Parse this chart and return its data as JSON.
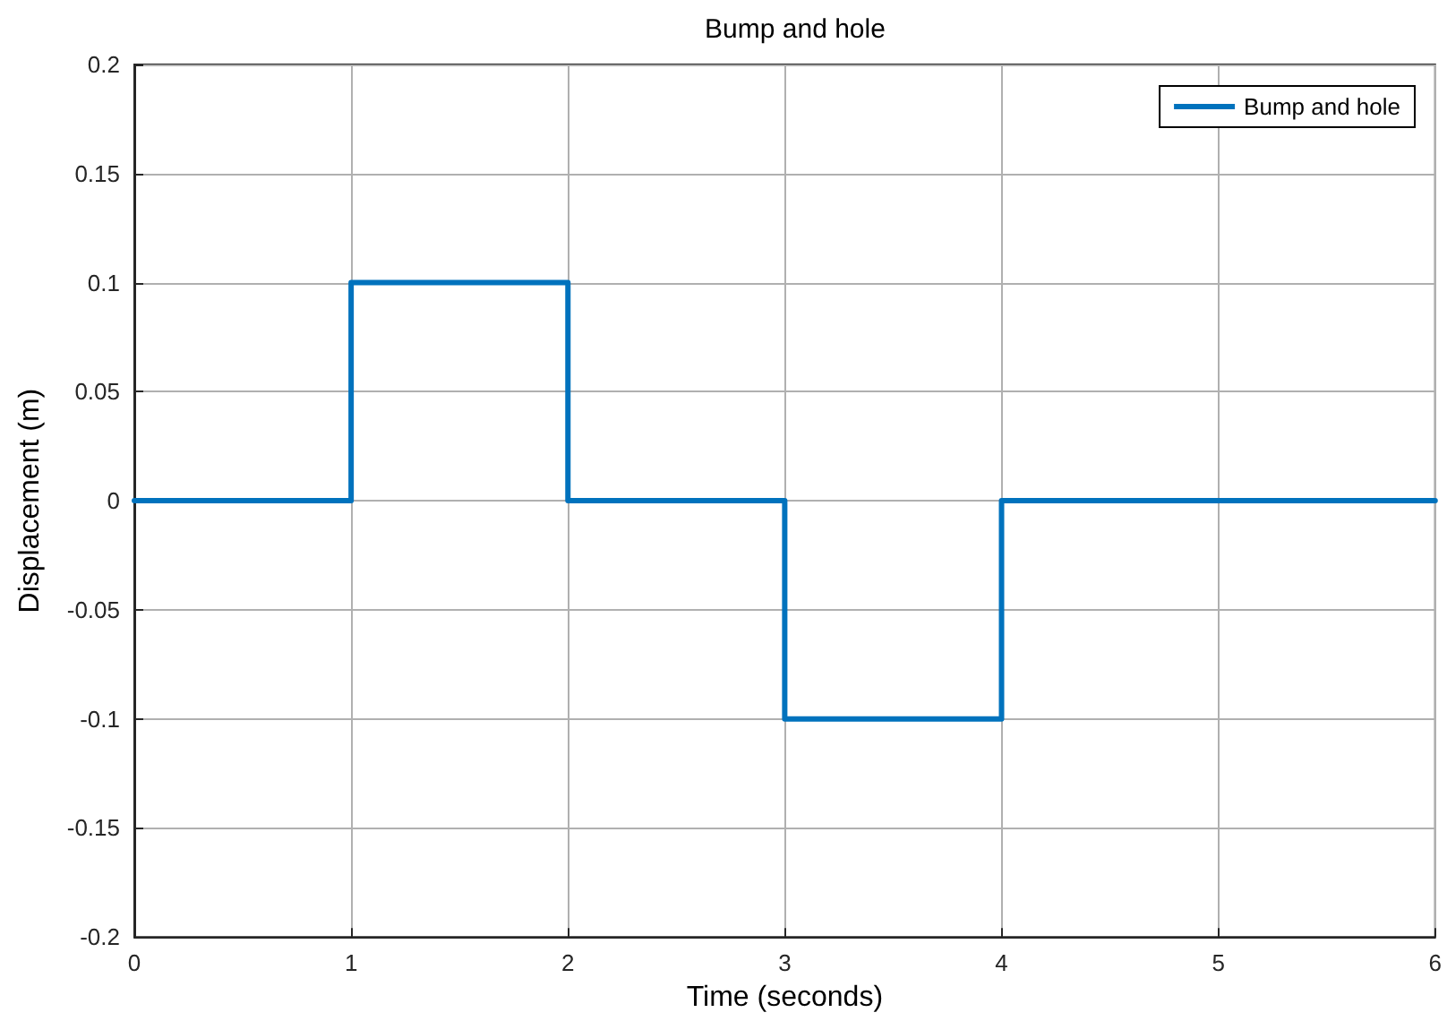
{
  "chart_data": {
    "type": "step",
    "title": "Bump and hole",
    "xlabel": "Time (seconds)",
    "ylabel": "Displacement (m)",
    "x": [
      0,
      1,
      2,
      3,
      4,
      6
    ],
    "series": [
      {
        "name": "Bump and hole",
        "color": "#0072bd",
        "values": [
          0,
          0.1,
          0,
          -0.1,
          0,
          0
        ]
      }
    ],
    "xlim": [
      0,
      6
    ],
    "xticks": [
      0,
      1,
      2,
      3,
      4,
      5,
      6
    ],
    "ylim": [
      -0.2,
      0.2
    ],
    "yticks": [
      -0.2,
      -0.15,
      -0.1,
      -0.05,
      0,
      0.05,
      0.1,
      0.15,
      0.2
    ],
    "grid": true,
    "legend": "top right",
    "marker": "none",
    "line_style": "solid"
  }
}
